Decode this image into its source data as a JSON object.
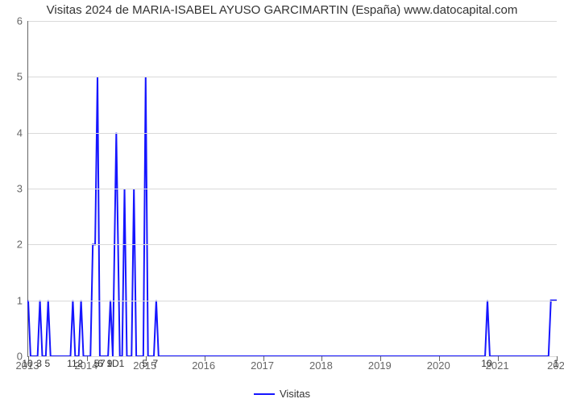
{
  "chart": {
    "type": "line",
    "title": "Visitas 2024 de MARIA-ISABEL AYUSO GARCIMARTIN (España) www.datocapital.com",
    "title_fontsize": 15,
    "title_color": "#333333",
    "background_color": "#ffffff",
    "grid_color": "#d9d9d9",
    "axis_color": "#666666",
    "tick_label_color": "#666666",
    "tick_label_fontsize": 13,
    "point_label_fontsize": 12,
    "point_label_color": "#333333",
    "line_color": "#1515ff",
    "line_width": 2,
    "x": {
      "min": 2013,
      "max": 2022,
      "ticks": [
        2013,
        2014,
        2015,
        2016,
        2017,
        2018,
        2019,
        2020,
        2021,
        2022
      ],
      "tick_labels": [
        "2013",
        "2014",
        "2015",
        "2016",
        "2017",
        "2018",
        "2019",
        "2020",
        "2021",
        "202"
      ]
    },
    "y": {
      "min": 0,
      "max": 6,
      "ticks": [
        0,
        1,
        2,
        3,
        4,
        5,
        6
      ]
    },
    "series": [
      {
        "x": 2013.0,
        "y": 1.0,
        "label": "10"
      },
      {
        "x": 2013.04,
        "y": 0
      },
      {
        "x": 2013.16,
        "y": 0
      },
      {
        "x": 2013.2,
        "y": 1.0,
        "label": "3"
      },
      {
        "x": 2013.24,
        "y": 0
      },
      {
        "x": 2013.3,
        "y": 0
      },
      {
        "x": 2013.34,
        "y": 1.0,
        "label": "5"
      },
      {
        "x": 2013.38,
        "y": 0
      },
      {
        "x": 2013.72,
        "y": 0
      },
      {
        "x": 2013.76,
        "y": 1.0,
        "label": "11"
      },
      {
        "x": 2013.8,
        "y": 0
      },
      {
        "x": 2013.86,
        "y": 0
      },
      {
        "x": 2013.9,
        "y": 1.0,
        "label": "2"
      },
      {
        "x": 2013.94,
        "y": 0
      },
      {
        "x": 2014.06,
        "y": 0
      },
      {
        "x": 2014.1,
        "y": 2.0
      },
      {
        "x": 2014.14,
        "y": 2.0
      },
      {
        "x": 2014.18,
        "y": 5.0,
        "label": "5"
      },
      {
        "x": 2014.22,
        "y": 0
      },
      {
        "x": 2014.24,
        "y": 0,
        "label": "6"
      },
      {
        "x": 2014.28,
        "y": 0,
        "label": "7"
      },
      {
        "x": 2014.36,
        "y": 0
      },
      {
        "x": 2014.4,
        "y": 1.0,
        "label": "9"
      },
      {
        "x": 2014.44,
        "y": 0
      },
      {
        "x": 2014.5,
        "y": 4.0,
        "label_pair": "1D1"
      },
      {
        "x": 2014.56,
        "y": 0
      },
      {
        "x": 2014.6,
        "y": 0
      },
      {
        "x": 2014.64,
        "y": 3.0
      },
      {
        "x": 2014.68,
        "y": 0
      },
      {
        "x": 2014.76,
        "y": 0
      },
      {
        "x": 2014.8,
        "y": 3.0
      },
      {
        "x": 2014.84,
        "y": 0
      },
      {
        "x": 2014.96,
        "y": 0
      },
      {
        "x": 2015.0,
        "y": 5.0,
        "label": "5"
      },
      {
        "x": 2015.04,
        "y": 0
      },
      {
        "x": 2015.14,
        "y": 0
      },
      {
        "x": 2015.18,
        "y": 1.0,
        "label": "7"
      },
      {
        "x": 2015.22,
        "y": 0
      },
      {
        "x": 2020.78,
        "y": 0
      },
      {
        "x": 2020.82,
        "y": 1.0,
        "label": "10"
      },
      {
        "x": 2020.86,
        "y": 0
      },
      {
        "x": 2021.86,
        "y": 0
      },
      {
        "x": 2021.9,
        "y": 1.0
      },
      {
        "x": 2022.0,
        "y": 1.0,
        "label": "1"
      }
    ],
    "legend": {
      "label": "Visitas",
      "color": "#1515ff",
      "fontsize": 13
    }
  }
}
